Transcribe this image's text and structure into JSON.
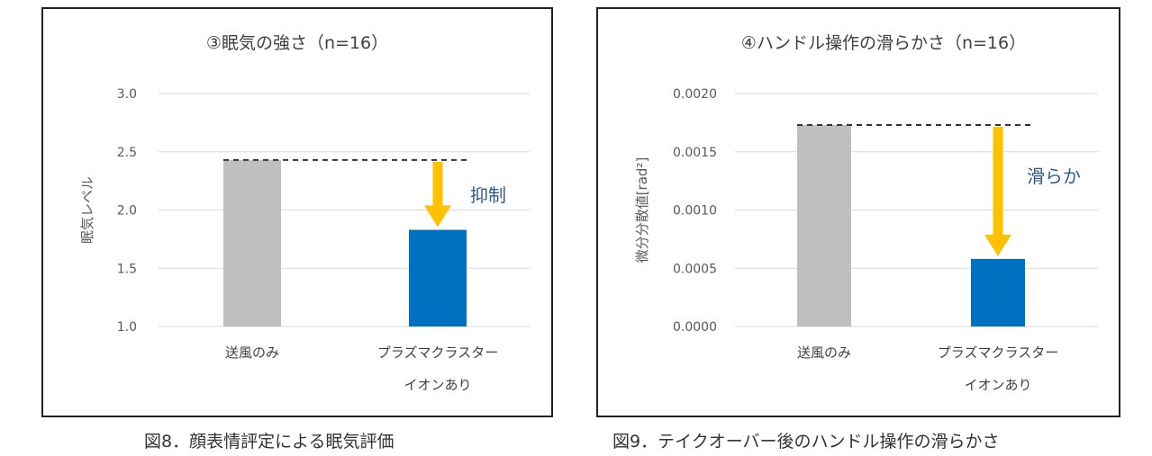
{
  "charts": [
    {
      "type": "bar",
      "title": "③眠気の強さ（n=16）",
      "ylabel": "眠気レベル",
      "ylim": [
        1.0,
        3.0
      ],
      "yticks": [
        "1.0",
        "1.5",
        "2.0",
        "2.5",
        "3.0"
      ],
      "ytick_values": [
        1.0,
        1.5,
        2.0,
        2.5,
        3.0
      ],
      "categories": [
        [
          "送風のみ"
        ],
        [
          "プラズマクラスター",
          "イオンあり"
        ]
      ],
      "values": [
        2.43,
        1.83
      ],
      "bar_colors": [
        "#bfbfbf",
        "#0070c0"
      ],
      "reference_line": 2.43,
      "annotation": "抑制",
      "arrow_color": "#ffc000",
      "annotation_color": "#2e5a8c",
      "caption": "図8．顔表情評定による眠気評価"
    },
    {
      "type": "bar",
      "title": "④ハンドル操作の滑らかさ（n=16）",
      "ylabel": "微分分散値[rad²]",
      "ylim": [
        0.0,
        0.002
      ],
      "yticks": [
        "0.0000",
        "0.0005",
        "0.0010",
        "0.0015",
        "0.0020"
      ],
      "ytick_values": [
        0.0,
        0.0005,
        0.001,
        0.0015,
        0.002
      ],
      "categories": [
        [
          "送風のみ"
        ],
        [
          "プラズマクラスター",
          "イオンあり"
        ]
      ],
      "values": [
        0.00173,
        0.00058
      ],
      "bar_colors": [
        "#bfbfbf",
        "#0070c0"
      ],
      "reference_line": 0.00173,
      "annotation": "滑らか",
      "arrow_color": "#ffc000",
      "annotation_color": "#2e5a8c",
      "caption": "図9．テイクオーバー後のハンドル操作の滑らかさ"
    }
  ]
}
